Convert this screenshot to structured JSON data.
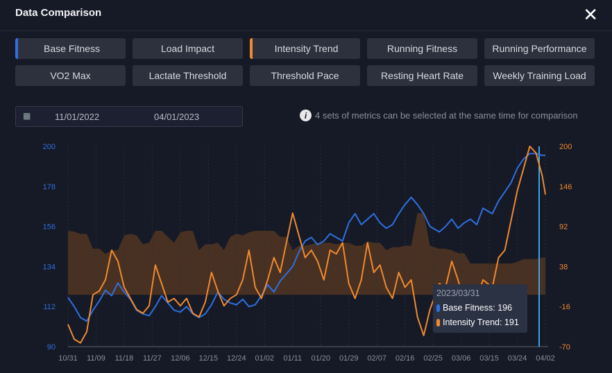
{
  "header": {
    "title": "Data Comparison",
    "close_icon": "close-icon"
  },
  "metrics": [
    {
      "label": "Base Fitness",
      "selected": "blue"
    },
    {
      "label": "Load Impact"
    },
    {
      "label": "Intensity Trend",
      "selected": "orange"
    },
    {
      "label": "Running Fitness"
    },
    {
      "label": "Running Performance"
    },
    {
      "label": "VO2 Max"
    },
    {
      "label": "Lactate Threshold"
    },
    {
      "label": "Threshold Pace"
    },
    {
      "label": "Resting Heart Rate"
    },
    {
      "label": "Weekly Training Load"
    }
  ],
  "date_range": {
    "start": "11/01/2022",
    "end": "04/01/2023"
  },
  "hint": "4 sets of metrics can be selected at the same time for comparison",
  "tooltip": {
    "date": "2023/03/31",
    "rows": [
      {
        "label": "Base Fitness: 196",
        "color": "#2f6fe0"
      },
      {
        "label": "Intensity Trend: 191",
        "color": "#f08a30"
      }
    ]
  },
  "colors": {
    "base": "#2f6fe0",
    "intensity": "#f08a30",
    "area": "#5a3a22",
    "cursor": "#3aa6e8"
  },
  "chart_data": {
    "type": "line",
    "x_tick_labels": [
      "10/31",
      "11/09",
      "11/18",
      "11/27",
      "12/06",
      "12/15",
      "12/24",
      "01/02",
      "01/11",
      "01/20",
      "01/29",
      "02/07",
      "02/16",
      "02/25",
      "03/06",
      "03/15",
      "03/24",
      "04/02"
    ],
    "left_axis": {
      "ticks": [
        "200",
        "178",
        "156",
        "134",
        "112",
        "90"
      ],
      "range": [
        90,
        200
      ]
    },
    "right_axis": {
      "ticks": [
        "200",
        "146",
        "92",
        "38",
        "-16",
        "-70"
      ],
      "range": [
        -70,
        200
      ]
    },
    "days": [
      0,
      2,
      4,
      6,
      8,
      10,
      12,
      14,
      16,
      18,
      20,
      22,
      24,
      26,
      28,
      30,
      32,
      34,
      36,
      38,
      40,
      42,
      44,
      46,
      48,
      50,
      52,
      54,
      56,
      58,
      60,
      62,
      64,
      66,
      68,
      70,
      72,
      74,
      76,
      78,
      80,
      82,
      84,
      86,
      88,
      90,
      92,
      94,
      96,
      98,
      100,
      102,
      104,
      106,
      108,
      110,
      112,
      114,
      116,
      119,
      121,
      123,
      125,
      127,
      129,
      131,
      133,
      136,
      138,
      140,
      142,
      144,
      146,
      148,
      150,
      152,
      153
    ],
    "series": [
      {
        "name": "Base Fitness",
        "axis": "left",
        "values": [
          117,
          112,
          106,
          104,
          110,
          115,
          121,
          118,
          125,
          120,
          116,
          110,
          108,
          107,
          112,
          118,
          114,
          110,
          109,
          112,
          108,
          106,
          108,
          113,
          120,
          116,
          114,
          113,
          116,
          112,
          113,
          118,
          124,
          120,
          126,
          130,
          134,
          142,
          148,
          150,
          146,
          148,
          152,
          150,
          148,
          158,
          163,
          157,
          160,
          163,
          158,
          155,
          157,
          163,
          168,
          172,
          168,
          163,
          156,
          153,
          156,
          160,
          155,
          158,
          160,
          157,
          166,
          163,
          170,
          175,
          180,
          188,
          193,
          196,
          196,
          195,
          195
        ]
      },
      {
        "name": "Intensity Trend",
        "axis": "right",
        "values": [
          -40,
          -60,
          -65,
          -50,
          0,
          5,
          20,
          60,
          45,
          10,
          -5,
          -20,
          -25,
          -15,
          40,
          15,
          -10,
          -5,
          -15,
          -5,
          -25,
          -30,
          -10,
          30,
          5,
          -15,
          -5,
          0,
          20,
          60,
          10,
          -5,
          20,
          50,
          30,
          70,
          110,
          80,
          50,
          60,
          45,
          20,
          60,
          55,
          70,
          15,
          -5,
          20,
          70,
          30,
          40,
          10,
          -5,
          30,
          10,
          20,
          -30,
          -55,
          -20,
          15,
          10,
          45,
          20,
          -10,
          10,
          -5,
          20,
          10,
          50,
          60,
          100,
          140,
          170,
          200,
          191,
          160,
          135
        ]
      },
      {
        "name": "Load background",
        "axis": "right",
        "type": "area",
        "values": [
          86,
          85,
          82,
          82,
          62,
          62,
          55,
          60,
          60,
          80,
          82,
          80,
          68,
          70,
          86,
          86,
          78,
          70,
          84,
          86,
          86,
          60,
          68,
          68,
          70,
          60,
          78,
          82,
          80,
          84,
          86,
          86,
          86,
          86,
          78,
          78,
          60,
          66,
          66,
          68,
          70,
          70,
          70,
          68,
          70,
          70,
          66,
          66,
          72,
          70,
          70,
          60,
          64,
          64,
          66,
          66,
          110,
          110,
          66,
          62,
          62,
          60,
          56,
          56,
          42,
          42,
          42,
          42,
          42,
          42,
          42,
          44,
          48,
          48,
          48,
          50,
          50
        ]
      }
    ]
  }
}
